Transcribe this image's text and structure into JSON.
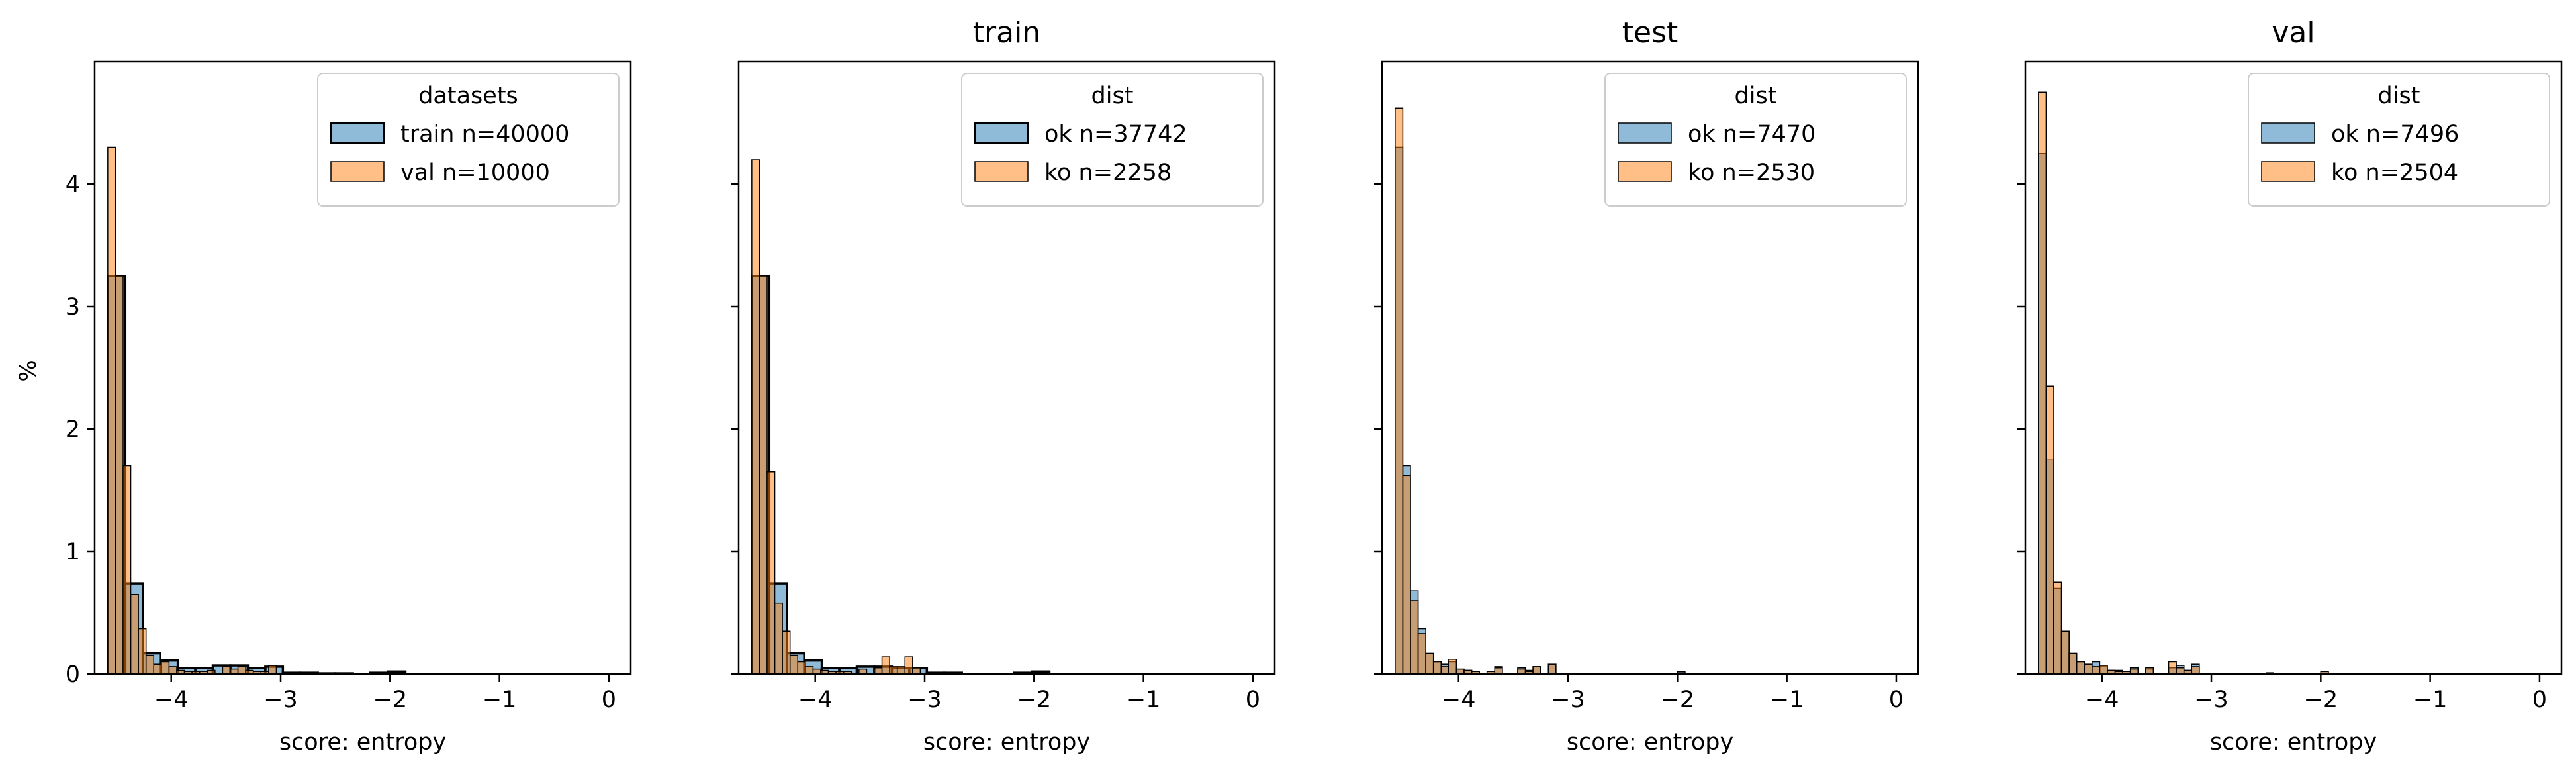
{
  "figure": {
    "ylabel": "%",
    "colors": {
      "blue": "#1f77b4",
      "orange": "#ff7f0e"
    }
  },
  "chart_data": [
    {
      "type": "histogram",
      "title": "",
      "xlabel": "score: entropy",
      "ylabel": "%",
      "xlim": [
        -4.7,
        0.2
      ],
      "ylim": [
        0,
        5
      ],
      "xticks": [
        "−4",
        "−3",
        "−2",
        "−1",
        "0"
      ],
      "yticks": [
        "0",
        "1",
        "2",
        "3",
        "4"
      ],
      "legend": {
        "title": "datasets",
        "position": "upper right"
      },
      "series": [
        {
          "name": "train n=40000",
          "color": "#1f77b4",
          "edge": "bold",
          "bins": [
            [
              -4.58,
              -4.42,
              3.25
            ],
            [
              -4.42,
              -4.26,
              0.74
            ],
            [
              -4.26,
              -4.1,
              0.17
            ],
            [
              -4.1,
              -3.94,
              0.11
            ],
            [
              -3.94,
              -3.78,
              0.05
            ],
            [
              -3.78,
              -3.62,
              0.05
            ],
            [
              -3.62,
              -3.46,
              0.07
            ],
            [
              -3.46,
              -3.3,
              0.07
            ],
            [
              -3.3,
              -3.14,
              0.05
            ],
            [
              -3.14,
              -2.98,
              0.06
            ],
            [
              -2.98,
              -2.82,
              0.01
            ],
            [
              -2.82,
              -2.66,
              0.01
            ],
            [
              -2.66,
              -2.5,
              0.005
            ],
            [
              -2.5,
              -2.34,
              0.005
            ],
            [
              -2.18,
              -2.02,
              0.01
            ],
            [
              -2.02,
              -1.86,
              0.02
            ]
          ]
        },
        {
          "name": "val n=10000",
          "color": "#ff7f0e",
          "edge": "thin",
          "bins": [
            [
              -4.58,
              -4.51,
              4.3
            ],
            [
              -4.51,
              -4.44,
              3.25
            ],
            [
              -4.44,
              -4.37,
              1.7
            ],
            [
              -4.37,
              -4.3,
              0.65
            ],
            [
              -4.3,
              -4.23,
              0.37
            ],
            [
              -4.23,
              -4.16,
              0.15
            ],
            [
              -4.16,
              -4.09,
              0.08
            ],
            [
              -4.09,
              -4.02,
              0.1
            ],
            [
              -4.02,
              -3.95,
              0.06
            ],
            [
              -3.95,
              -3.88,
              0.03
            ],
            [
              -3.88,
              -3.81,
              0.02
            ],
            [
              -3.81,
              -3.74,
              0.02
            ],
            [
              -3.74,
              -3.67,
              0.02
            ],
            [
              -3.67,
              -3.6,
              0.03
            ],
            [
              -3.53,
              -3.46,
              0.06
            ],
            [
              -3.46,
              -3.39,
              0.04
            ],
            [
              -3.39,
              -3.32,
              0.06
            ],
            [
              -3.32,
              -3.25,
              0.03
            ],
            [
              -3.25,
              -3.18,
              0.02
            ],
            [
              -3.18,
              -3.11,
              0.02
            ],
            [
              -3.11,
              -3.04,
              0.07
            ],
            [
              -2.0,
              -1.93,
              0.01
            ],
            [
              -1.93,
              -1.86,
              0.01
            ]
          ]
        }
      ]
    },
    {
      "type": "histogram",
      "title": "train",
      "xlabel": "score: entropy",
      "ylabel": "",
      "xlim": [
        -4.7,
        0.2
      ],
      "ylim": [
        0,
        5
      ],
      "xticks": [
        "−4",
        "−3",
        "−2",
        "−1",
        "0"
      ],
      "yticks": [
        "",
        "",
        "",
        "",
        ""
      ],
      "legend": {
        "title": "dist",
        "position": "upper right"
      },
      "series": [
        {
          "name": "ok n=37742",
          "color": "#1f77b4",
          "edge": "bold",
          "bins": [
            [
              -4.58,
              -4.42,
              3.25
            ],
            [
              -4.42,
              -4.26,
              0.74
            ],
            [
              -4.26,
              -4.1,
              0.17
            ],
            [
              -4.1,
              -3.94,
              0.11
            ],
            [
              -3.94,
              -3.78,
              0.05
            ],
            [
              -3.78,
              -3.62,
              0.05
            ],
            [
              -3.62,
              -3.46,
              0.06
            ],
            [
              -3.46,
              -3.3,
              0.06
            ],
            [
              -3.3,
              -3.14,
              0.05
            ],
            [
              -3.14,
              -2.98,
              0.05
            ],
            [
              -2.98,
              -2.82,
              0.01
            ],
            [
              -2.82,
              -2.66,
              0.01
            ],
            [
              -2.18,
              -2.02,
              0.01
            ],
            [
              -2.02,
              -1.86,
              0.02
            ]
          ]
        },
        {
          "name": "ko n=2258",
          "color": "#ff7f0e",
          "edge": "thin",
          "bins": [
            [
              -4.58,
              -4.51,
              4.2
            ],
            [
              -4.51,
              -4.44,
              3.25
            ],
            [
              -4.44,
              -4.37,
              1.65
            ],
            [
              -4.37,
              -4.3,
              0.58
            ],
            [
              -4.3,
              -4.23,
              0.35
            ],
            [
              -4.23,
              -4.16,
              0.15
            ],
            [
              -4.16,
              -4.09,
              0.1
            ],
            [
              -4.09,
              -4.02,
              0.06
            ],
            [
              -4.02,
              -3.95,
              0.04
            ],
            [
              -3.95,
              -3.88,
              0.03
            ],
            [
              -3.88,
              -3.81,
              0.02
            ],
            [
              -3.81,
              -3.74,
              0.02
            ],
            [
              -3.74,
              -3.67,
              0.02
            ],
            [
              -3.6,
              -3.53,
              0.04
            ],
            [
              -3.46,
              -3.39,
              0.05
            ],
            [
              -3.39,
              -3.32,
              0.14
            ],
            [
              -3.32,
              -3.25,
              0.06
            ],
            [
              -3.25,
              -3.18,
              0.06
            ],
            [
              -3.18,
              -3.11,
              0.14
            ],
            [
              -3.11,
              -3.04,
              0.05
            ],
            [
              -2.0,
              -1.93,
              0.01
            ]
          ]
        }
      ]
    },
    {
      "type": "histogram",
      "title": "test",
      "xlabel": "score: entropy",
      "ylabel": "",
      "xlim": [
        -4.7,
        0.2
      ],
      "ylim": [
        0,
        5
      ],
      "xticks": [
        "−4",
        "−3",
        "−2",
        "−1",
        "0"
      ],
      "yticks": [
        "",
        "",
        "",
        "",
        ""
      ],
      "legend": {
        "title": "dist",
        "position": "upper right"
      },
      "series": [
        {
          "name": "ok n=7470",
          "color": "#1f77b4",
          "edge": "thin",
          "bins": [
            [
              -4.58,
              -4.51,
              4.3
            ],
            [
              -4.51,
              -4.44,
              1.7
            ],
            [
              -4.44,
              -4.37,
              0.68
            ],
            [
              -4.37,
              -4.3,
              0.37
            ],
            [
              -4.3,
              -4.23,
              0.17
            ],
            [
              -4.23,
              -4.16,
              0.1
            ],
            [
              -4.16,
              -4.09,
              0.08
            ],
            [
              -4.09,
              -4.02,
              0.1
            ],
            [
              -4.02,
              -3.95,
              0.04
            ],
            [
              -3.95,
              -3.88,
              0.03
            ],
            [
              -3.88,
              -3.81,
              0.02
            ],
            [
              -3.74,
              -3.67,
              0.02
            ],
            [
              -3.67,
              -3.6,
              0.06
            ],
            [
              -3.46,
              -3.39,
              0.05
            ],
            [
              -3.39,
              -3.32,
              0.03
            ],
            [
              -3.32,
              -3.25,
              0.06
            ],
            [
              -3.18,
              -3.11,
              0.08
            ],
            [
              -2.0,
              -1.93,
              0.02
            ]
          ]
        },
        {
          "name": "ko n=2530",
          "color": "#ff7f0e",
          "edge": "thin",
          "bins": [
            [
              -4.58,
              -4.51,
              4.62
            ],
            [
              -4.51,
              -4.44,
              1.62
            ],
            [
              -4.44,
              -4.37,
              0.6
            ],
            [
              -4.37,
              -4.3,
              0.33
            ],
            [
              -4.3,
              -4.23,
              0.17
            ],
            [
              -4.23,
              -4.16,
              0.1
            ],
            [
              -4.16,
              -4.09,
              0.06
            ],
            [
              -4.09,
              -4.02,
              0.12
            ],
            [
              -4.02,
              -3.95,
              0.04
            ],
            [
              -3.95,
              -3.88,
              0.03
            ],
            [
              -3.88,
              -3.81,
              0.02
            ],
            [
              -3.74,
              -3.67,
              0.02
            ],
            [
              -3.67,
              -3.6,
              0.05
            ],
            [
              -3.46,
              -3.39,
              0.04
            ],
            [
              -3.39,
              -3.32,
              0.02
            ],
            [
              -3.32,
              -3.25,
              0.06
            ],
            [
              -3.18,
              -3.11,
              0.08
            ],
            [
              -2.0,
              -1.93,
              0.01
            ]
          ]
        }
      ]
    },
    {
      "type": "histogram",
      "title": "val",
      "xlabel": "score: entropy",
      "ylabel": "",
      "xlim": [
        -4.7,
        0.2
      ],
      "ylim": [
        0,
        5
      ],
      "xticks": [
        "−4",
        "−3",
        "−2",
        "−1",
        "0"
      ],
      "yticks": [
        "",
        "",
        "",
        "",
        ""
      ],
      "legend": {
        "title": "dist",
        "position": "upper right"
      },
      "series": [
        {
          "name": "ok n=7496",
          "color": "#1f77b4",
          "edge": "thin",
          "bins": [
            [
              -4.58,
              -4.51,
              4.25
            ],
            [
              -4.51,
              -4.44,
              1.75
            ],
            [
              -4.44,
              -4.37,
              0.7
            ],
            [
              -4.37,
              -4.3,
              0.35
            ],
            [
              -4.3,
              -4.23,
              0.17
            ],
            [
              -4.23,
              -4.16,
              0.1
            ],
            [
              -4.16,
              -4.09,
              0.08
            ],
            [
              -4.09,
              -4.02,
              0.1
            ],
            [
              -4.02,
              -3.95,
              0.06
            ],
            [
              -3.95,
              -3.88,
              0.03
            ],
            [
              -3.88,
              -3.81,
              0.03
            ],
            [
              -3.81,
              -3.74,
              0.02
            ],
            [
              -3.74,
              -3.67,
              0.05
            ],
            [
              -3.6,
              -3.53,
              0.04
            ],
            [
              -3.39,
              -3.32,
              0.05
            ],
            [
              -3.32,
              -3.25,
              0.07
            ],
            [
              -3.25,
              -3.18,
              0.03
            ],
            [
              -3.18,
              -3.11,
              0.08
            ],
            [
              -2.5,
              -2.43,
              0.01
            ],
            [
              -2.0,
              -1.93,
              0.02
            ]
          ]
        },
        {
          "name": "ko n=2504",
          "color": "#ff7f0e",
          "edge": "thin",
          "bins": [
            [
              -4.58,
              -4.51,
              4.75
            ],
            [
              -4.51,
              -4.44,
              2.35
            ],
            [
              -4.44,
              -4.37,
              0.75
            ],
            [
              -4.37,
              -4.3,
              0.35
            ],
            [
              -4.3,
              -4.23,
              0.17
            ],
            [
              -4.23,
              -4.16,
              0.1
            ],
            [
              -4.16,
              -4.09,
              0.08
            ],
            [
              -4.09,
              -4.02,
              0.06
            ],
            [
              -4.02,
              -3.95,
              0.07
            ],
            [
              -3.95,
              -3.88,
              0.03
            ],
            [
              -3.88,
              -3.81,
              0.02
            ],
            [
              -3.81,
              -3.74,
              0.02
            ],
            [
              -3.74,
              -3.67,
              0.04
            ],
            [
              -3.6,
              -3.53,
              0.05
            ],
            [
              -3.39,
              -3.32,
              0.1
            ],
            [
              -3.32,
              -3.25,
              0.05
            ],
            [
              -3.25,
              -3.18,
              0.03
            ],
            [
              -3.18,
              -3.11,
              0.06
            ],
            [
              -2.0,
              -1.93,
              0.02
            ]
          ]
        }
      ]
    }
  ]
}
